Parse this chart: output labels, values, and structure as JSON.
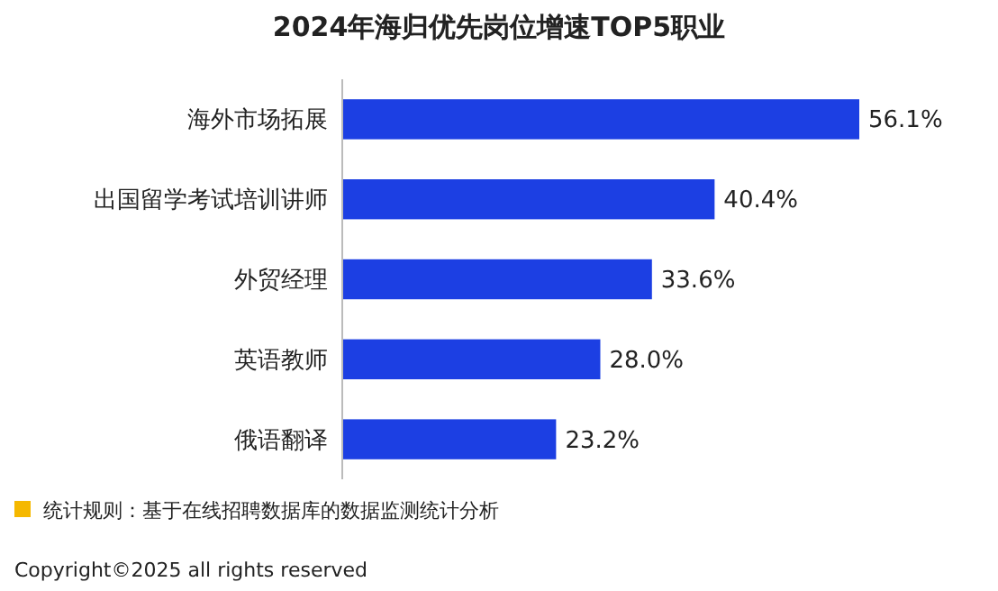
{
  "chart_data": {
    "type": "bar",
    "orientation": "horizontal",
    "title": "2024年海归优先岗位增速TOP5职业",
    "categories": [
      "海外市场拓展",
      "出国留学考试培训讲师",
      "外贸经理",
      "英语教师",
      "俄语翻译"
    ],
    "values": [
      56.1,
      40.4,
      33.6,
      28.0,
      23.2
    ],
    "value_labels": [
      "56.1%",
      "40.4%",
      "33.6%",
      "28.0%",
      "23.2%"
    ],
    "color": "#1c3fe3",
    "annotations": [
      "统计规则：基于在线招聘数据库的数据监测统计分析",
      "Copyright©2025 all rights reserved"
    ]
  }
}
